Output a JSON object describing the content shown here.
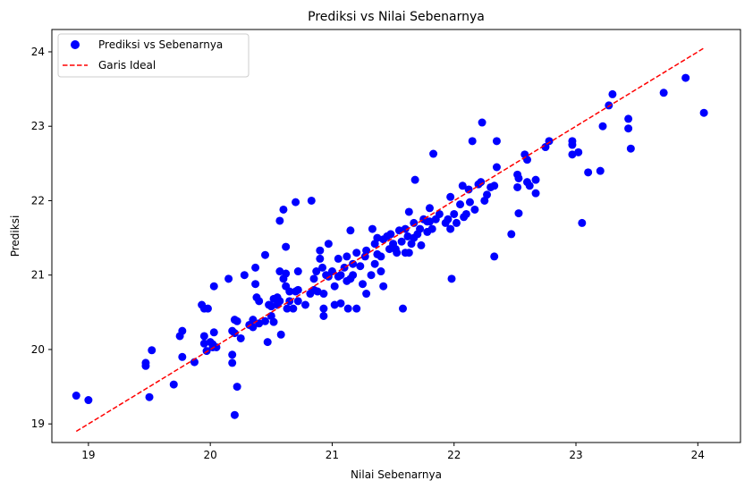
{
  "chart_data": {
    "type": "scatter",
    "title": "Prediksi vs Nilai Sebenarnya",
    "xlabel": "Nilai Sebenarnya",
    "ylabel": "Prediksi",
    "xlim": [
      18.7,
      24.35
    ],
    "ylim": [
      18.75,
      24.3
    ],
    "xticks": [
      19,
      20,
      21,
      22,
      23,
      24
    ],
    "yticks": [
      19,
      20,
      21,
      22,
      23,
      24
    ],
    "grid": false,
    "legend_position": "top-left",
    "series": [
      {
        "name": "Prediksi vs Sebenarnya",
        "kind": "scatter",
        "color": "#0000ff",
        "points": [
          [
            18.9,
            19.38
          ],
          [
            19.0,
            19.32
          ],
          [
            19.47,
            19.82
          ],
          [
            19.47,
            19.78
          ],
          [
            19.5,
            19.36
          ],
          [
            19.52,
            19.99
          ],
          [
            19.7,
            19.53
          ],
          [
            19.75,
            20.18
          ],
          [
            19.77,
            20.25
          ],
          [
            19.77,
            19.9
          ],
          [
            19.87,
            19.83
          ],
          [
            19.93,
            20.6
          ],
          [
            19.95,
            20.55
          ],
          [
            19.95,
            20.18
          ],
          [
            19.95,
            20.08
          ],
          [
            19.97,
            19.98
          ],
          [
            19.98,
            20.55
          ],
          [
            20.0,
            20.1
          ],
          [
            20.02,
            20.07
          ],
          [
            20.02,
            20.03
          ],
          [
            20.03,
            20.85
          ],
          [
            20.03,
            20.23
          ],
          [
            20.05,
            20.03
          ],
          [
            20.15,
            20.95
          ],
          [
            20.18,
            20.25
          ],
          [
            20.18,
            19.93
          ],
          [
            20.2,
            20.4
          ],
          [
            20.2,
            20.22
          ],
          [
            20.18,
            19.82
          ],
          [
            20.22,
            20.38
          ],
          [
            20.22,
            19.5
          ],
          [
            20.2,
            19.12
          ],
          [
            20.25,
            20.15
          ],
          [
            20.28,
            21.0
          ],
          [
            20.32,
            20.33
          ],
          [
            20.35,
            20.3
          ],
          [
            20.35,
            20.4
          ],
          [
            20.37,
            21.1
          ],
          [
            20.37,
            20.88
          ],
          [
            20.38,
            20.7
          ],
          [
            20.4,
            20.65
          ],
          [
            20.4,
            20.35
          ],
          [
            20.45,
            21.27
          ],
          [
            20.45,
            20.38
          ],
          [
            20.47,
            20.1
          ],
          [
            20.48,
            20.6
          ],
          [
            20.5,
            20.58
          ],
          [
            20.5,
            20.45
          ],
          [
            20.52,
            20.68
          ],
          [
            20.52,
            20.37
          ],
          [
            20.55,
            20.7
          ],
          [
            20.55,
            20.6
          ],
          [
            20.57,
            21.73
          ],
          [
            20.57,
            21.05
          ],
          [
            20.57,
            20.65
          ],
          [
            20.58,
            20.2
          ],
          [
            20.6,
            21.88
          ],
          [
            20.6,
            20.95
          ],
          [
            20.62,
            21.38
          ],
          [
            20.62,
            21.02
          ],
          [
            20.62,
            20.85
          ],
          [
            20.63,
            20.55
          ],
          [
            20.65,
            20.78
          ],
          [
            20.65,
            20.65
          ],
          [
            20.68,
            20.55
          ],
          [
            20.7,
            21.98
          ],
          [
            20.7,
            20.78
          ],
          [
            20.72,
            21.05
          ],
          [
            20.72,
            20.8
          ],
          [
            20.72,
            20.65
          ],
          [
            20.78,
            20.6
          ],
          [
            20.82,
            20.75
          ],
          [
            20.83,
            22.0
          ],
          [
            20.85,
            20.8
          ],
          [
            20.85,
            20.95
          ],
          [
            20.87,
            21.05
          ],
          [
            20.88,
            20.78
          ],
          [
            20.9,
            21.33
          ],
          [
            20.9,
            21.22
          ],
          [
            20.92,
            21.1
          ],
          [
            20.93,
            20.75
          ],
          [
            20.93,
            20.55
          ],
          [
            20.93,
            20.45
          ],
          [
            20.95,
            21.0
          ],
          [
            20.97,
            21.42
          ],
          [
            20.97,
            20.98
          ],
          [
            21.0,
            21.05
          ],
          [
            21.02,
            20.85
          ],
          [
            21.02,
            20.6
          ],
          [
            21.05,
            21.22
          ],
          [
            21.05,
            20.98
          ],
          [
            21.07,
            21.0
          ],
          [
            21.07,
            20.62
          ],
          [
            21.1,
            21.1
          ],
          [
            21.12,
            21.25
          ],
          [
            21.12,
            20.92
          ],
          [
            21.13,
            20.55
          ],
          [
            21.15,
            21.6
          ],
          [
            21.15,
            20.95
          ],
          [
            21.17,
            21.0
          ],
          [
            21.17,
            21.15
          ],
          [
            21.2,
            21.3
          ],
          [
            21.2,
            20.55
          ],
          [
            21.23,
            21.12
          ],
          [
            21.25,
            20.88
          ],
          [
            21.27,
            21.25
          ],
          [
            21.28,
            21.33
          ],
          [
            21.28,
            20.75
          ],
          [
            21.32,
            21.0
          ],
          [
            21.33,
            21.62
          ],
          [
            21.35,
            21.42
          ],
          [
            21.35,
            21.15
          ],
          [
            21.37,
            21.5
          ],
          [
            21.37,
            21.28
          ],
          [
            21.4,
            21.25
          ],
          [
            21.4,
            21.05
          ],
          [
            21.42,
            21.48
          ],
          [
            21.42,
            20.85
          ],
          [
            21.45,
            21.52
          ],
          [
            21.47,
            21.35
          ],
          [
            21.48,
            21.55
          ],
          [
            21.5,
            21.42
          ],
          [
            21.52,
            21.35
          ],
          [
            21.53,
            21.3
          ],
          [
            21.55,
            21.6
          ],
          [
            21.57,
            21.45
          ],
          [
            21.58,
            20.55
          ],
          [
            21.6,
            21.62
          ],
          [
            21.6,
            21.3
          ],
          [
            21.62,
            21.52
          ],
          [
            21.63,
            21.85
          ],
          [
            21.63,
            21.3
          ],
          [
            21.65,
            21.42
          ],
          [
            21.67,
            21.7
          ],
          [
            21.67,
            21.5
          ],
          [
            21.68,
            22.28
          ],
          [
            21.7,
            21.55
          ],
          [
            21.72,
            21.62
          ],
          [
            21.73,
            21.4
          ],
          [
            21.75,
            21.75
          ],
          [
            21.78,
            21.72
          ],
          [
            21.78,
            21.58
          ],
          [
            21.8,
            21.9
          ],
          [
            21.8,
            21.72
          ],
          [
            21.82,
            21.62
          ],
          [
            21.83,
            22.63
          ],
          [
            21.85,
            21.75
          ],
          [
            21.88,
            21.82
          ],
          [
            21.93,
            21.7
          ],
          [
            21.95,
            21.75
          ],
          [
            21.97,
            22.05
          ],
          [
            21.97,
            21.62
          ],
          [
            22.0,
            21.82
          ],
          [
            21.98,
            20.95
          ],
          [
            22.02,
            21.7
          ],
          [
            22.05,
            21.95
          ],
          [
            22.07,
            22.2
          ],
          [
            22.08,
            21.78
          ],
          [
            22.1,
            21.82
          ],
          [
            22.12,
            22.15
          ],
          [
            22.13,
            21.98
          ],
          [
            22.15,
            22.8
          ],
          [
            22.17,
            21.88
          ],
          [
            22.2,
            22.22
          ],
          [
            22.22,
            22.25
          ],
          [
            22.23,
            23.05
          ],
          [
            22.25,
            22.0
          ],
          [
            22.27,
            22.08
          ],
          [
            22.3,
            22.18
          ],
          [
            22.33,
            22.2
          ],
          [
            22.33,
            21.25
          ],
          [
            22.35,
            22.45
          ],
          [
            22.35,
            22.8
          ],
          [
            22.47,
            21.55
          ],
          [
            22.52,
            22.35
          ],
          [
            22.52,
            22.18
          ],
          [
            22.53,
            22.3
          ],
          [
            22.53,
            21.83
          ],
          [
            22.58,
            22.62
          ],
          [
            22.6,
            22.55
          ],
          [
            22.6,
            22.25
          ],
          [
            22.62,
            22.2
          ],
          [
            22.67,
            22.28
          ],
          [
            22.67,
            22.1
          ],
          [
            22.75,
            22.72
          ],
          [
            22.78,
            22.8
          ],
          [
            22.97,
            22.8
          ],
          [
            22.97,
            22.75
          ],
          [
            22.97,
            22.62
          ],
          [
            23.02,
            22.65
          ],
          [
            23.05,
            21.7
          ],
          [
            23.1,
            22.38
          ],
          [
            23.2,
            22.4
          ],
          [
            23.22,
            23.0
          ],
          [
            23.27,
            23.28
          ],
          [
            23.3,
            23.43
          ],
          [
            23.43,
            23.1
          ],
          [
            23.43,
            22.97
          ],
          [
            23.45,
            22.7
          ],
          [
            23.72,
            23.45
          ],
          [
            23.9,
            23.65
          ],
          [
            24.05,
            23.18
          ]
        ]
      },
      {
        "name": "Garis Ideal",
        "kind": "line",
        "style": "dashed",
        "color": "#ff0000",
        "points": [
          [
            18.9,
            18.9
          ],
          [
            24.05,
            24.05
          ]
        ]
      }
    ]
  }
}
